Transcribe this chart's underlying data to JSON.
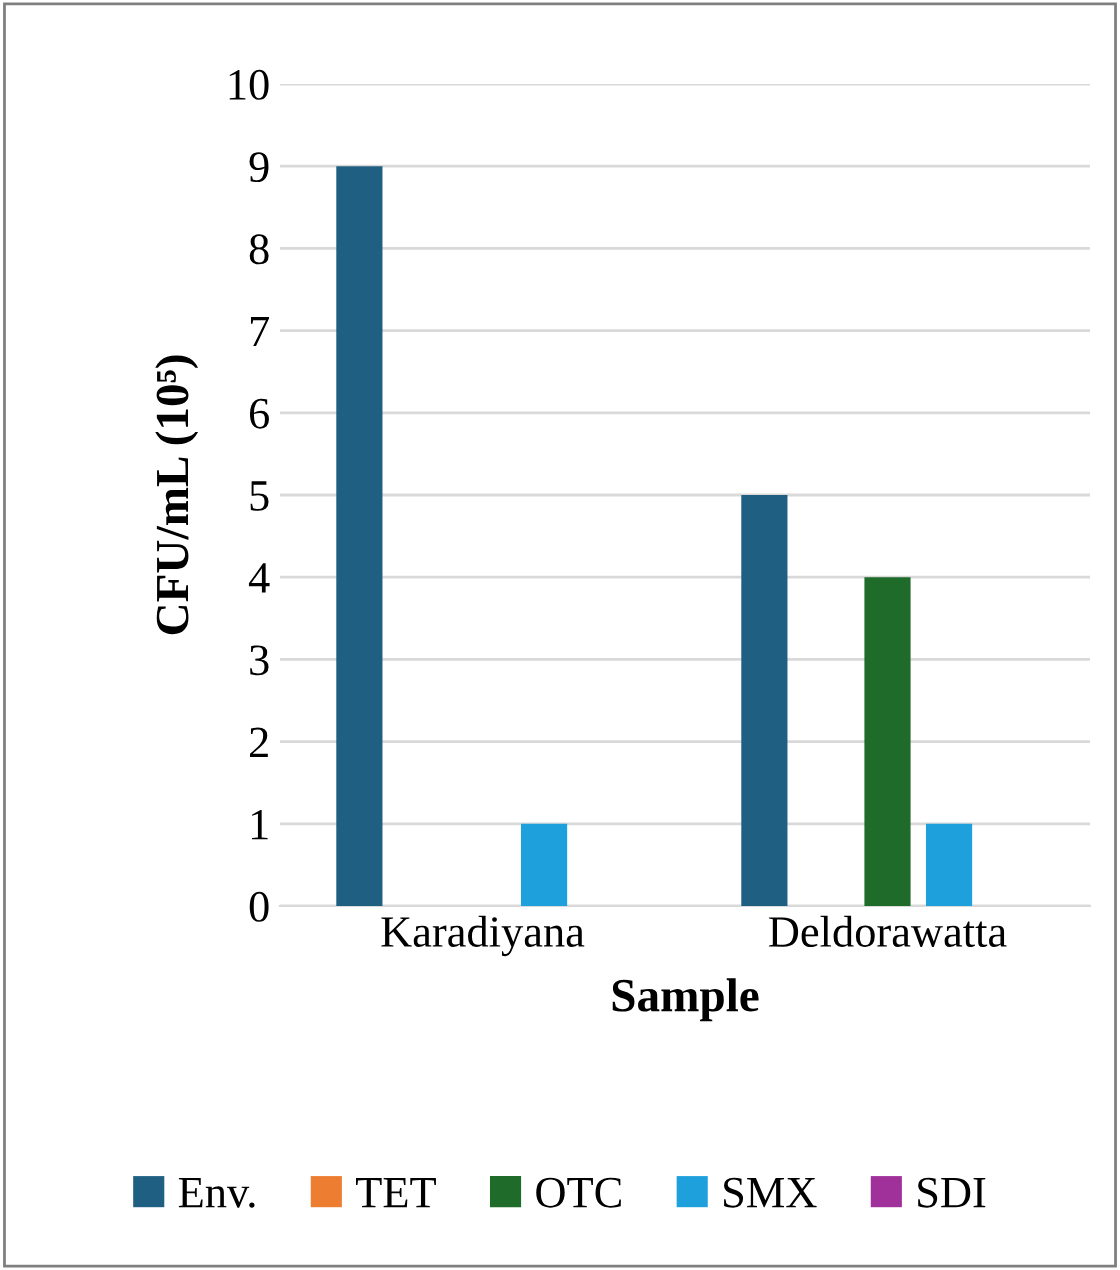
{
  "chart_data": {
    "type": "bar",
    "xlabel": "Sample",
    "ylabel": "CFU/mL (10⁵)",
    "categories": [
      "Karadiyana",
      "Deldorawatta"
    ],
    "series": [
      {
        "name": "Env.",
        "color": "#1f5f82",
        "values": [
          9,
          5
        ]
      },
      {
        "name": "TET",
        "color": "#ed7d31",
        "values": [
          0,
          0
        ]
      },
      {
        "name": "OTC",
        "color": "#1e6b2a",
        "values": [
          0,
          4
        ]
      },
      {
        "name": "SMX",
        "color": "#1ea0dc",
        "values": [
          1,
          1
        ]
      },
      {
        "name": "SDI",
        "color": "#a0309a",
        "values": [
          0,
          0
        ]
      }
    ],
    "ylim": [
      0,
      10
    ],
    "yticks": [
      0,
      1,
      2,
      3,
      4,
      5,
      6,
      7,
      8,
      9,
      10
    ],
    "grid": "y",
    "legend": "bottom"
  }
}
